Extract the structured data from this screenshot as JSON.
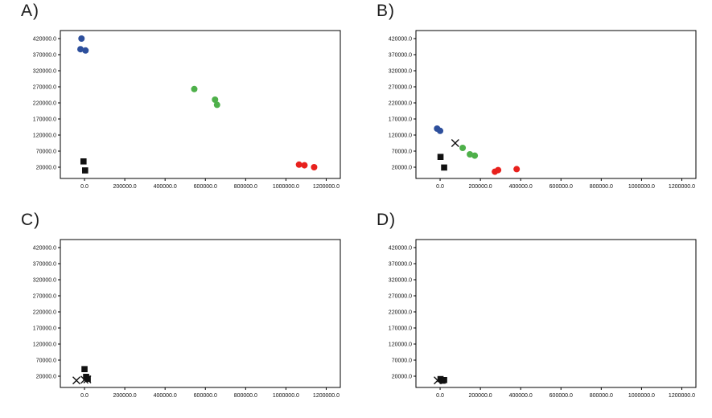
{
  "page": {
    "background": "#ffffff"
  },
  "colors": {
    "blue": "#2d4f9c",
    "green": "#4eb04a",
    "red": "#e8211d",
    "black": "#111111",
    "axis": "#000000"
  },
  "chart_data": [
    {
      "type": "scatter",
      "panel_label": "A)",
      "title": "",
      "xlabel": "",
      "ylabel": "",
      "grid": false,
      "legend": "none",
      "xlim": [
        -120000,
        1270000
      ],
      "ylim": [
        -15000,
        445000
      ],
      "x_ticks": [
        0,
        200000,
        400000,
        600000,
        800000,
        1000000,
        1200000
      ],
      "y_ticks": [
        20000,
        70000,
        120000,
        170000,
        220000,
        270000,
        320000,
        370000,
        420000
      ],
      "series": [
        {
          "name": "cluster-blue",
          "marker": "circle",
          "color": "#2d4f9c",
          "points": [
            [
              -15000,
              420000
            ],
            [
              -20000,
              387000
            ],
            [
              5000,
              383000
            ]
          ]
        },
        {
          "name": "cluster-green",
          "marker": "circle",
          "color": "#4eb04a",
          "points": [
            [
              545000,
              263000
            ],
            [
              648000,
              230000
            ],
            [
              658000,
              214000
            ]
          ]
        },
        {
          "name": "cluster-red",
          "marker": "circle",
          "color": "#e8211d",
          "points": [
            [
              1065000,
              28000
            ],
            [
              1092000,
              26000
            ],
            [
              1140000,
              20000
            ]
          ]
        },
        {
          "name": "cluster-black-squares",
          "marker": "square",
          "color": "#111111",
          "points": [
            [
              -5000,
              38000
            ],
            [
              3000,
              10000
            ]
          ]
        }
      ]
    },
    {
      "type": "scatter",
      "panel_label": "B)",
      "title": "",
      "xlabel": "",
      "ylabel": "",
      "grid": false,
      "legend": "none",
      "xlim": [
        -120000,
        1270000
      ],
      "ylim": [
        -15000,
        445000
      ],
      "x_ticks": [
        0,
        200000,
        400000,
        600000,
        800000,
        1000000,
        1200000
      ],
      "y_ticks": [
        20000,
        70000,
        120000,
        170000,
        220000,
        270000,
        320000,
        370000,
        420000
      ],
      "series": [
        {
          "name": "cluster-blue",
          "marker": "circle",
          "color": "#2d4f9c",
          "points": [
            [
              -15000,
              140000
            ],
            [
              0,
              133000
            ]
          ]
        },
        {
          "name": "centroid-x",
          "marker": "x",
          "color": "#111111",
          "points": [
            [
              75000,
              95000
            ]
          ]
        },
        {
          "name": "cluster-green",
          "marker": "circle",
          "color": "#4eb04a",
          "points": [
            [
              112000,
              80000
            ],
            [
              148000,
              60000
            ],
            [
              172000,
              56000
            ]
          ]
        },
        {
          "name": "cluster-black-squares",
          "marker": "square",
          "color": "#111111",
          "points": [
            [
              2000,
              52000
            ],
            [
              20000,
              19000
            ]
          ]
        },
        {
          "name": "cluster-red",
          "marker": "circle",
          "color": "#e8211d",
          "points": [
            [
              272000,
              6000
            ],
            [
              288000,
              11000
            ],
            [
              380000,
              14000
            ]
          ]
        }
      ]
    },
    {
      "type": "scatter",
      "panel_label": "C)",
      "title": "",
      "xlabel": "",
      "ylabel": "",
      "grid": false,
      "legend": "none",
      "xlim": [
        -120000,
        1270000
      ],
      "ylim": [
        -15000,
        445000
      ],
      "x_ticks": [
        0,
        200000,
        400000,
        600000,
        800000,
        1000000,
        1200000
      ],
      "y_ticks": [
        20000,
        70000,
        120000,
        170000,
        220000,
        270000,
        320000,
        370000,
        420000
      ],
      "series": [
        {
          "name": "cluster-black-squares",
          "marker": "square",
          "color": "#111111",
          "points": [
            [
              0,
              42000
            ],
            [
              8000,
              18000
            ],
            [
              16000,
              12000
            ]
          ]
        },
        {
          "name": "centroid-x",
          "marker": "x",
          "color": "#111111",
          "points": [
            [
              -40000,
              7000
            ],
            [
              0,
              9000
            ],
            [
              14000,
              10000
            ]
          ]
        }
      ]
    },
    {
      "type": "scatter",
      "panel_label": "D)",
      "title": "",
      "xlabel": "",
      "ylabel": "",
      "grid": false,
      "legend": "none",
      "xlim": [
        -120000,
        1270000
      ],
      "ylim": [
        -15000,
        445000
      ],
      "x_ticks": [
        0,
        200000,
        400000,
        600000,
        800000,
        1000000,
        1200000
      ],
      "y_ticks": [
        20000,
        70000,
        120000,
        170000,
        220000,
        270000,
        320000,
        370000,
        420000
      ],
      "series": [
        {
          "name": "cluster-black-squares",
          "marker": "square",
          "color": "#111111",
          "points": [
            [
              2000,
              11000
            ],
            [
              12000,
              6000
            ],
            [
              20000,
              8000
            ]
          ]
        },
        {
          "name": "centroid-x",
          "marker": "x",
          "color": "#111111",
          "points": [
            [
              -12000,
              7000
            ]
          ]
        }
      ]
    }
  ]
}
